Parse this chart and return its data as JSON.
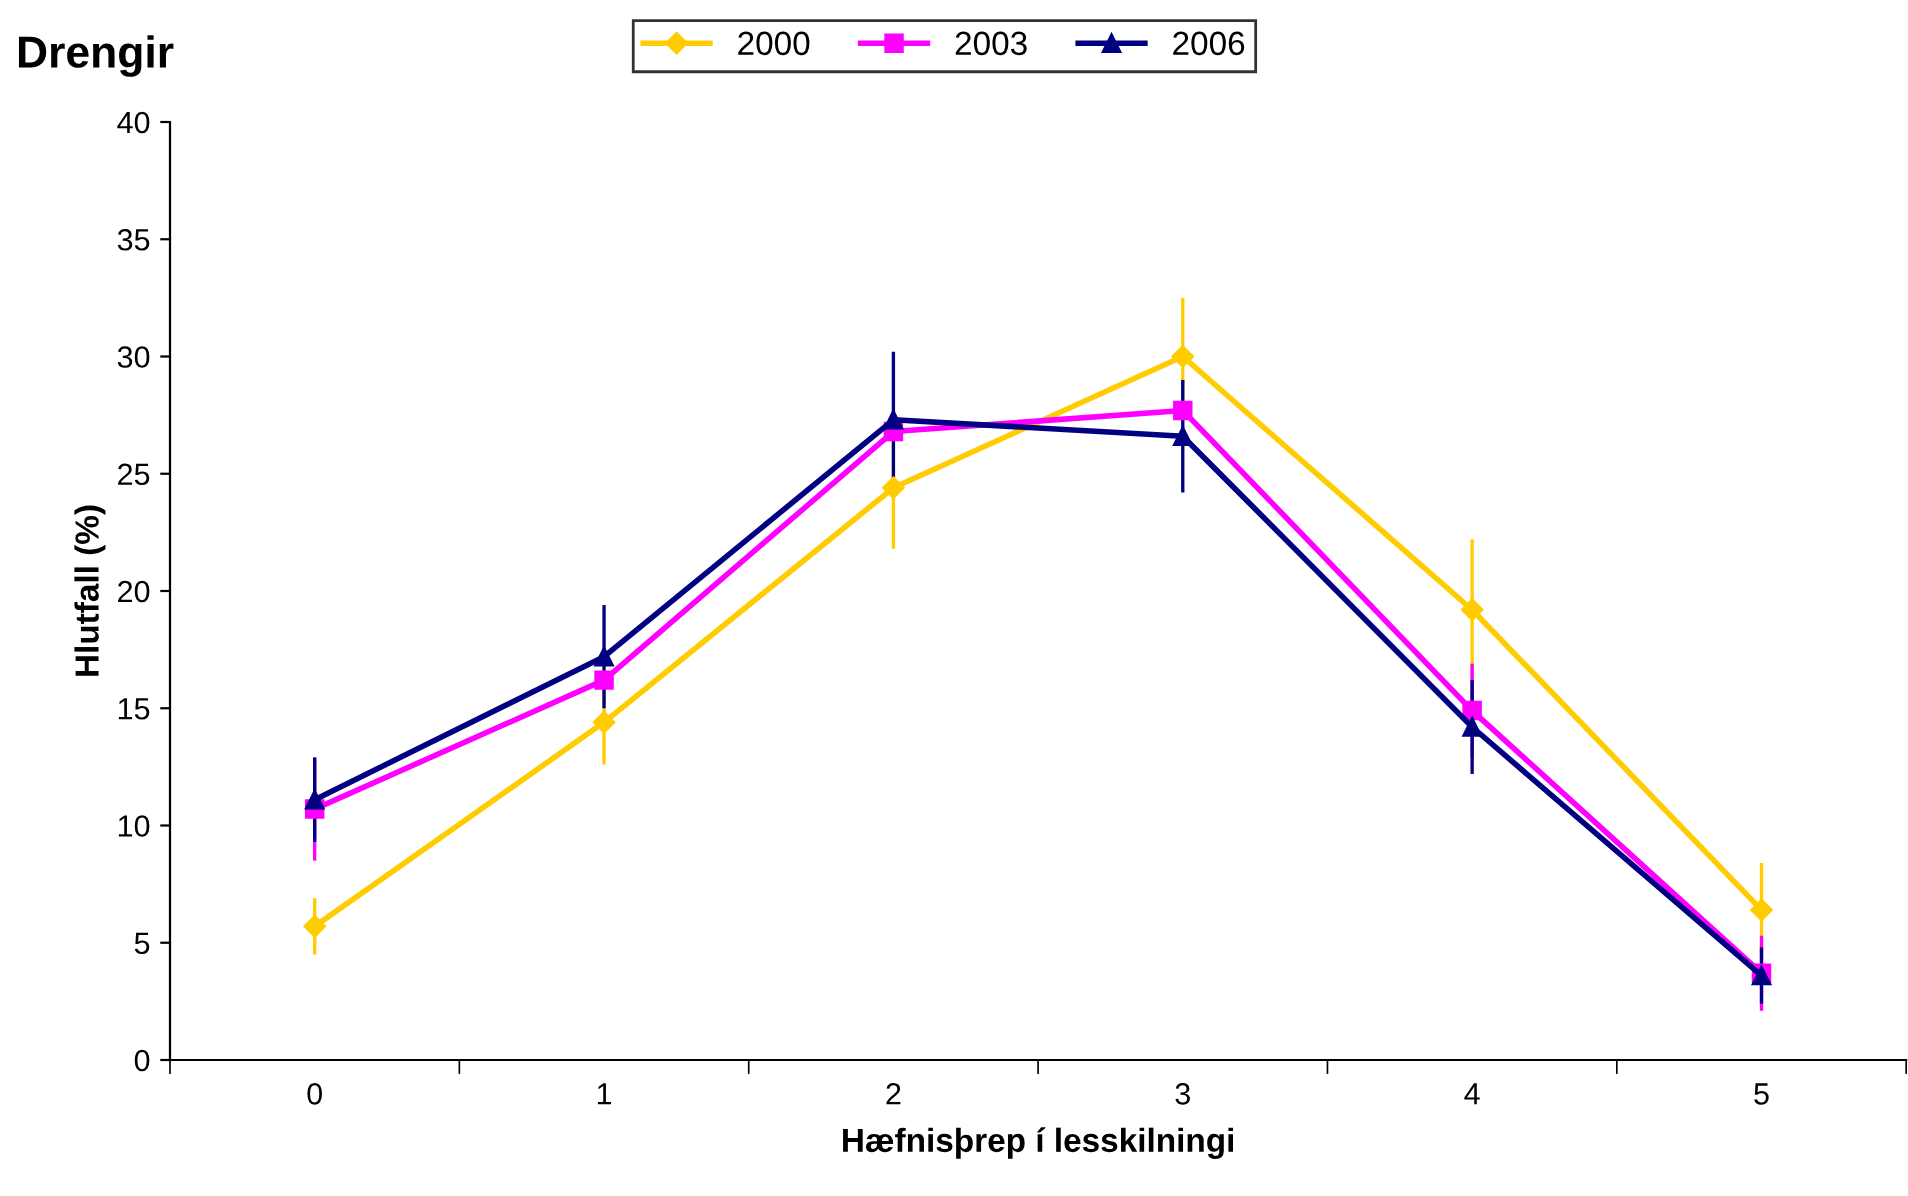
{
  "chart_data": {
    "type": "line",
    "title": "Drengir",
    "xlabel": "Hæfnisþrep í lesskilningi",
    "ylabel": "Hlutfall (%)",
    "categories": [
      "0",
      "1",
      "2",
      "3",
      "4",
      "5"
    ],
    "series": [
      {
        "name": "2000",
        "color": "#ffcc00",
        "marker": "diamond",
        "values": [
          5.7,
          14.4,
          24.4,
          30.0,
          19.2,
          6.4
        ],
        "errors": [
          1.2,
          1.8,
          2.6,
          2.5,
          3.0,
          2.0
        ]
      },
      {
        "name": "2003",
        "color": "#ff00ff",
        "marker": "square",
        "values": [
          10.7,
          16.2,
          26.8,
          27.7,
          14.9,
          3.7
        ],
        "errors": [
          2.2,
          null,
          null,
          null,
          2.0,
          1.6
        ]
      },
      {
        "name": "2006",
        "color": "#000080",
        "marker": "triangle",
        "values": [
          11.1,
          17.2,
          27.3,
          26.6,
          14.2,
          3.6
        ],
        "errors": [
          1.8,
          2.2,
          2.9,
          2.4,
          2.0,
          1.2
        ]
      }
    ],
    "ylim": [
      0,
      40
    ],
    "yticks": [
      0,
      5,
      10,
      15,
      20,
      25,
      30,
      35,
      40
    ],
    "grid": false,
    "legend": "top"
  }
}
